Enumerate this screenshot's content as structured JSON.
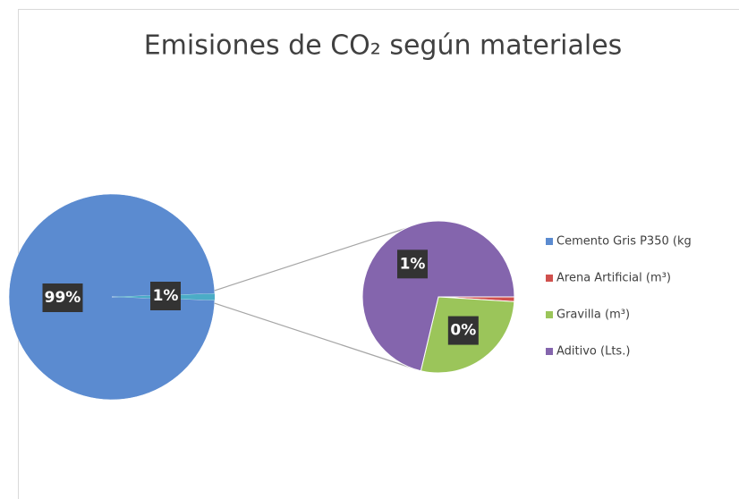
{
  "chart_data": {
    "type": "pie-of-pie",
    "title": "Emisiones de CO₂ según materiales",
    "series": [
      {
        "name": "Cemento  Gris P350 (kg",
        "color": "#5b8bd0",
        "values": [
          98.99
        ],
        "value_labels": [
          "99%"
        ]
      },
      {
        "name": "Arena Artificial (m³)",
        "color": "#d0504d",
        "values": [
          0.01
        ]
      },
      {
        "name": "Gravilla (m³)",
        "color": "#9bc55a",
        "values": [
          0.28
        ],
        "value_labels": [
          "0%"
        ]
      },
      {
        "name": "Aditivo (Lts.)",
        "color": "#8465ad",
        "values": [
          0.72
        ],
        "value_labels": [
          "1%"
        ]
      }
    ],
    "secondary_from": 1,
    "other_label": "1%",
    "legend": "right"
  }
}
